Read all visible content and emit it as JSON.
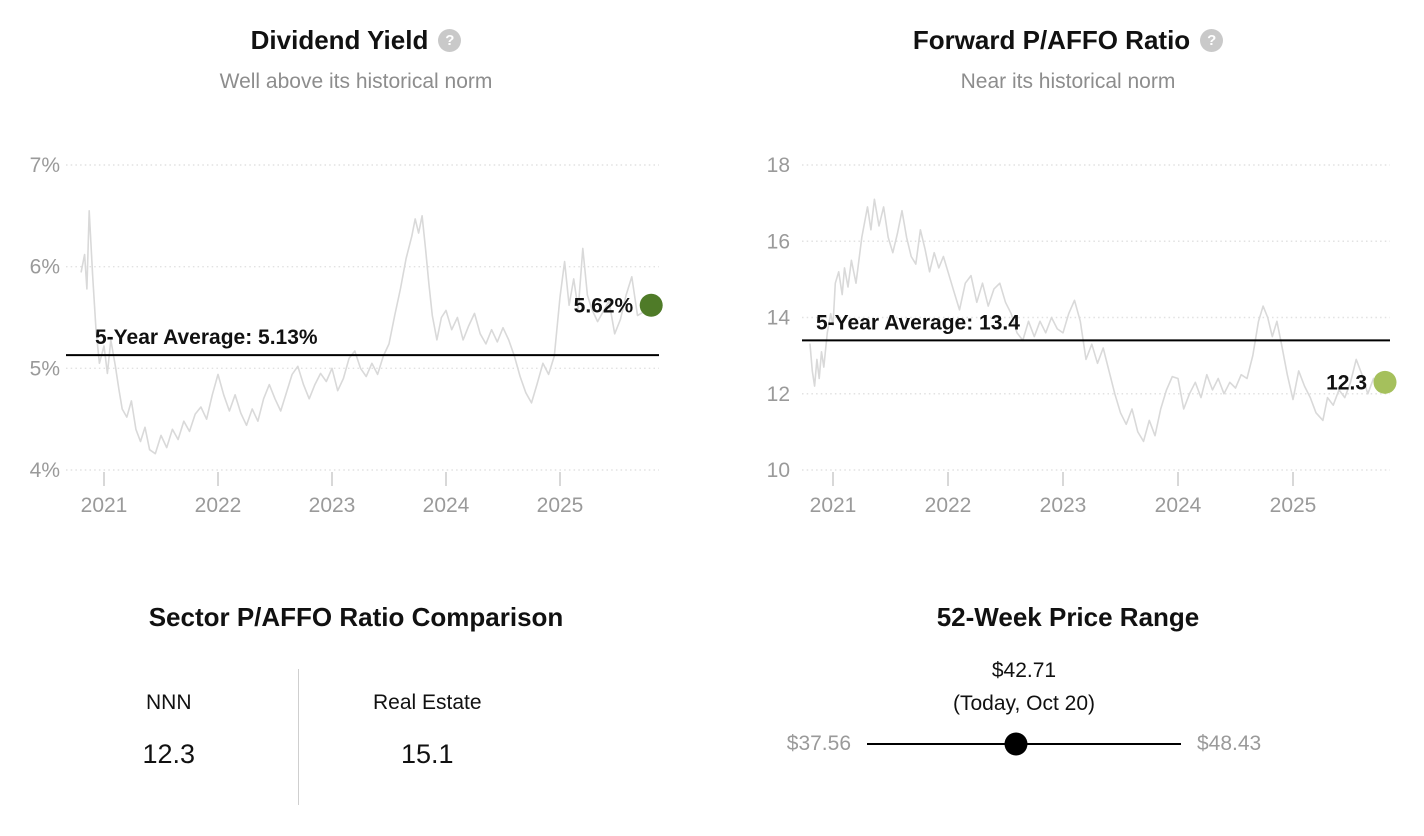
{
  "chart_data": [
    {
      "type": "line",
      "title": "Dividend Yield",
      "subtitle": "Well above its historical norm",
      "help_glyph": "?",
      "y_ticks": [
        7,
        6,
        5,
        4
      ],
      "y_tick_labels": [
        "7%",
        "6%",
        "5%",
        "4%"
      ],
      "ylim": [
        4,
        7
      ],
      "x_ticks": [
        2021,
        2022,
        2023,
        2024,
        2025
      ],
      "x_tick_labels": [
        "2021",
        "2022",
        "2023",
        "2024",
        "2025"
      ],
      "xlim": [
        2020.78,
        2025.87
      ],
      "average": 5.13,
      "average_label": "5-Year Average: 5.13%",
      "last_value": 5.62,
      "last_value_label": "5.62%",
      "line_color": "#d9d9d9",
      "grid_color": "#e2e2e2",
      "average_line_color": "#000000",
      "dot_color": "#4f7b28",
      "axis_label_color": "#9a9a9a",
      "x": [
        2020.8,
        2020.83,
        2020.85,
        2020.87,
        2020.9,
        2020.93,
        2020.96,
        2021.0,
        2021.03,
        2021.06,
        2021.1,
        2021.13,
        2021.16,
        2021.2,
        2021.24,
        2021.28,
        2021.32,
        2021.36,
        2021.4,
        2021.45,
        2021.5,
        2021.55,
        2021.6,
        2021.65,
        2021.7,
        2021.75,
        2021.8,
        2021.85,
        2021.9,
        2021.95,
        2022.0,
        2022.05,
        2022.1,
        2022.15,
        2022.2,
        2022.25,
        2022.3,
        2022.35,
        2022.4,
        2022.45,
        2022.5,
        2022.55,
        2022.6,
        2022.65,
        2022.7,
        2022.75,
        2022.8,
        2022.85,
        2022.9,
        2022.95,
        2023.0,
        2023.05,
        2023.1,
        2023.15,
        2023.2,
        2023.25,
        2023.3,
        2023.35,
        2023.4,
        2023.45,
        2023.5,
        2023.55,
        2023.6,
        2023.65,
        2023.7,
        2023.73,
        2023.76,
        2023.79,
        2023.82,
        2023.85,
        2023.88,
        2023.92,
        2023.96,
        2024.0,
        2024.05,
        2024.1,
        2024.15,
        2024.2,
        2024.25,
        2024.3,
        2024.35,
        2024.4,
        2024.45,
        2024.5,
        2024.55,
        2024.6,
        2024.65,
        2024.7,
        2024.75,
        2024.8,
        2024.85,
        2024.9,
        2024.95,
        2025.0,
        2025.04,
        2025.08,
        2025.12,
        2025.16,
        2025.2,
        2025.24,
        2025.28,
        2025.33,
        2025.38,
        2025.43,
        2025.48,
        2025.53,
        2025.58,
        2025.63,
        2025.68,
        2025.74,
        2025.8
      ],
      "values": [
        5.95,
        6.12,
        5.78,
        6.55,
        5.92,
        5.38,
        5.05,
        5.22,
        4.95,
        5.28,
        5.02,
        4.8,
        4.6,
        4.52,
        4.68,
        4.4,
        4.28,
        4.42,
        4.2,
        4.16,
        4.34,
        4.22,
        4.4,
        4.3,
        4.48,
        4.38,
        4.55,
        4.62,
        4.5,
        4.74,
        4.94,
        4.74,
        4.58,
        4.74,
        4.56,
        4.44,
        4.6,
        4.48,
        4.7,
        4.84,
        4.7,
        4.58,
        4.76,
        4.94,
        5.02,
        4.84,
        4.7,
        4.84,
        4.95,
        4.87,
        5.0,
        4.78,
        4.9,
        5.1,
        5.17,
        5.0,
        4.92,
        5.05,
        4.94,
        5.12,
        5.24,
        5.52,
        5.78,
        6.08,
        6.3,
        6.47,
        6.33,
        6.5,
        6.18,
        5.83,
        5.52,
        5.28,
        5.5,
        5.57,
        5.38,
        5.5,
        5.28,
        5.42,
        5.54,
        5.34,
        5.24,
        5.38,
        5.26,
        5.4,
        5.28,
        5.12,
        4.92,
        4.76,
        4.66,
        4.85,
        5.05,
        4.94,
        5.12,
        5.7,
        6.05,
        5.62,
        5.88,
        5.58,
        6.18,
        5.72,
        5.58,
        5.46,
        5.56,
        5.66,
        5.34,
        5.48,
        5.72,
        5.9,
        5.52,
        5.56,
        5.62
      ]
    },
    {
      "type": "line",
      "title": "Forward P/AFFO Ratio",
      "subtitle": "Near its historical norm",
      "help_glyph": "?",
      "y_ticks": [
        18,
        16,
        14,
        12,
        10
      ],
      "y_tick_labels": [
        "18",
        "16",
        "14",
        "12",
        "10"
      ],
      "ylim": [
        10,
        18
      ],
      "x_ticks": [
        2021,
        2022,
        2023,
        2024,
        2025
      ],
      "x_tick_labels": [
        "2021",
        "2022",
        "2023",
        "2024",
        "2025"
      ],
      "xlim": [
        2020.78,
        2025.87
      ],
      "average": 13.4,
      "average_label": "5-Year Average: 13.4",
      "last_value": 12.3,
      "last_value_label": "12.3",
      "line_color": "#d9d9d9",
      "grid_color": "#e2e2e2",
      "average_line_color": "#000000",
      "dot_color": "#a5c05c",
      "axis_label_color": "#9a9a9a",
      "x": [
        2020.8,
        2020.82,
        2020.84,
        2020.86,
        2020.88,
        2020.9,
        2020.92,
        2020.95,
        2020.98,
        2021.0,
        2021.02,
        2021.05,
        2021.08,
        2021.1,
        2021.13,
        2021.16,
        2021.2,
        2021.25,
        2021.3,
        2021.33,
        2021.36,
        2021.4,
        2021.44,
        2021.48,
        2021.52,
        2021.56,
        2021.6,
        2021.64,
        2021.68,
        2021.72,
        2021.76,
        2021.8,
        2021.84,
        2021.88,
        2021.92,
        2021.96,
        2022.0,
        2022.05,
        2022.1,
        2022.15,
        2022.2,
        2022.25,
        2022.3,
        2022.35,
        2022.4,
        2022.45,
        2022.5,
        2022.55,
        2022.6,
        2022.65,
        2022.7,
        2022.75,
        2022.8,
        2022.85,
        2022.9,
        2022.95,
        2023.0,
        2023.05,
        2023.1,
        2023.15,
        2023.2,
        2023.25,
        2023.3,
        2023.35,
        2023.4,
        2023.45,
        2023.5,
        2023.55,
        2023.6,
        2023.65,
        2023.7,
        2023.75,
        2023.8,
        2023.85,
        2023.9,
        2023.95,
        2024.0,
        2024.05,
        2024.1,
        2024.15,
        2024.2,
        2024.25,
        2024.3,
        2024.35,
        2024.4,
        2024.45,
        2024.5,
        2024.55,
        2024.6,
        2024.65,
        2024.7,
        2024.74,
        2024.78,
        2024.82,
        2024.86,
        2024.9,
        2024.95,
        2025.0,
        2025.05,
        2025.1,
        2025.15,
        2025.2,
        2025.26,
        2025.3,
        2025.35,
        2025.4,
        2025.45,
        2025.5,
        2025.55,
        2025.6,
        2025.65,
        2025.7,
        2025.75,
        2025.8
      ],
      "values": [
        13.3,
        12.6,
        12.2,
        12.9,
        12.4,
        13.1,
        12.7,
        13.6,
        14.1,
        13.8,
        14.9,
        15.2,
        14.6,
        15.3,
        14.8,
        15.5,
        14.9,
        16.1,
        16.9,
        16.3,
        17.1,
        16.4,
        16.9,
        16.1,
        15.7,
        16.2,
        16.8,
        16.1,
        15.6,
        15.4,
        16.3,
        15.8,
        15.2,
        15.7,
        15.3,
        15.6,
        15.2,
        14.7,
        14.2,
        14.9,
        15.1,
        14.4,
        14.9,
        14.3,
        14.75,
        14.9,
        14.4,
        14.1,
        13.6,
        13.4,
        13.9,
        13.5,
        13.9,
        13.6,
        14.0,
        13.7,
        13.6,
        14.1,
        14.45,
        13.9,
        12.9,
        13.3,
        12.8,
        13.2,
        12.6,
        12.0,
        11.5,
        11.2,
        11.6,
        11.0,
        10.75,
        11.3,
        10.9,
        11.6,
        12.1,
        12.45,
        12.4,
        11.6,
        12.0,
        12.3,
        11.9,
        12.5,
        12.1,
        12.4,
        12.0,
        12.3,
        12.15,
        12.5,
        12.4,
        13.0,
        13.9,
        14.3,
        14.0,
        13.5,
        13.9,
        13.3,
        12.5,
        11.85,
        12.6,
        12.2,
        11.9,
        11.5,
        11.3,
        11.9,
        11.7,
        12.1,
        11.9,
        12.3,
        12.9,
        12.5,
        12.0,
        12.4,
        12.1,
        12.3
      ]
    }
  ],
  "sector_comparison": {
    "title": "Sector P/AFFO Ratio Comparison",
    "columns": [
      {
        "label": "NNN",
        "value": "12.3"
      },
      {
        "label": "Real Estate",
        "value": "15.1"
      }
    ]
  },
  "price_range": {
    "title": "52-Week Price Range",
    "current_price": "$42.71",
    "current_note": "(Today, Oct 20)",
    "low": "$37.56",
    "high": "$48.43",
    "position_pct": 47.4
  }
}
